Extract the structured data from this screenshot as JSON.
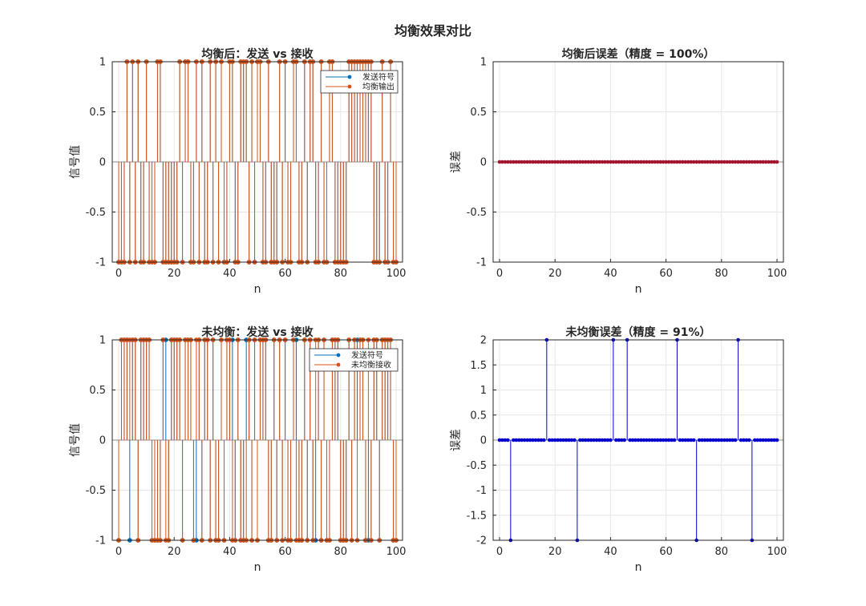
{
  "figure": {
    "title": "均衡效果对比"
  },
  "colors": {
    "sent": "#0072BD",
    "output": "#D95319",
    "error_post": "#A2142F",
    "error_pre": "#0000CC",
    "grid": "#E6E6E6",
    "axis": "#262626"
  },
  "chart_data": [
    {
      "type": "stem",
      "title": "均衡后：发送 vs 接收",
      "xlabel": "n",
      "ylabel": "信号值",
      "xlim": [
        0,
        100
      ],
      "ylim": [
        -1,
        1
      ],
      "xticks": [
        "0",
        "20",
        "40",
        "60",
        "80",
        "100"
      ],
      "yticks": [
        "-1",
        "-0.5",
        "0",
        "0.5",
        "1"
      ],
      "grid": true,
      "legend": {
        "placement": "top-right",
        "entries": [
          "发送符号",
          "均衡输出"
        ]
      },
      "x_start": 0,
      "series": [
        {
          "name": "发送符号",
          "values": [
            -1,
            -1,
            -1,
            1,
            -1,
            1,
            -1,
            1,
            -1,
            -1,
            1,
            -1,
            -1,
            -1,
            1,
            1,
            -1,
            -1,
            -1,
            -1,
            -1,
            -1,
            1,
            -1,
            1,
            1,
            -1,
            -1,
            1,
            -1,
            1,
            -1,
            -1,
            1,
            -1,
            1,
            -1,
            1,
            -1,
            -1,
            1,
            1,
            -1,
            -1,
            1,
            1,
            1,
            -1,
            1,
            -1,
            1,
            1,
            -1,
            -1,
            1,
            -1,
            -1,
            -1,
            1,
            -1,
            1,
            -1,
            -1,
            1,
            1,
            -1,
            -1,
            1,
            -1,
            1,
            1,
            -1,
            -1,
            1,
            -1,
            -1,
            1,
            1,
            -1,
            -1,
            -1,
            -1,
            -1,
            1,
            1,
            1,
            1,
            1,
            1,
            1,
            1,
            1,
            -1,
            -1,
            -1,
            1,
            -1,
            -1,
            1,
            -1,
            -1
          ]
        },
        {
          "name": "均衡输出",
          "values": [
            -1,
            -1,
            -1,
            1,
            -1,
            1,
            -1,
            1,
            -1,
            -1,
            1,
            -1,
            -1,
            -1,
            1,
            1,
            -1,
            -1,
            -1,
            -1,
            -1,
            -1,
            1,
            -1,
            1,
            1,
            -1,
            -1,
            1,
            -1,
            1,
            -1,
            -1,
            1,
            -1,
            1,
            -1,
            1,
            -1,
            -1,
            1,
            1,
            -1,
            -1,
            1,
            1,
            1,
            -1,
            1,
            -1,
            1,
            1,
            -1,
            -1,
            1,
            -1,
            -1,
            -1,
            1,
            -1,
            1,
            -1,
            -1,
            1,
            1,
            -1,
            -1,
            1,
            -1,
            1,
            1,
            -1,
            -1,
            1,
            -1,
            -1,
            1,
            1,
            -1,
            -1,
            -1,
            -1,
            -1,
            1,
            1,
            1,
            1,
            1,
            1,
            1,
            1,
            1,
            -1,
            -1,
            -1,
            1,
            -1,
            -1,
            1,
            -1,
            -1
          ]
        }
      ]
    },
    {
      "type": "stem",
      "title": "均衡后误差（精度 = 100%）",
      "xlabel": "n",
      "ylabel": "误差",
      "xlim": [
        0,
        100
      ],
      "ylim": [
        -1,
        1
      ],
      "xticks": [
        "0",
        "20",
        "40",
        "60",
        "80",
        "100"
      ],
      "yticks": [
        "-1",
        "-0.5",
        "0",
        "0.5",
        "1"
      ],
      "grid": true,
      "x_start": 0,
      "series": [
        {
          "values": [
            0,
            0,
            0,
            0,
            0,
            0,
            0,
            0,
            0,
            0,
            0,
            0,
            0,
            0,
            0,
            0,
            0,
            0,
            0,
            0,
            0,
            0,
            0,
            0,
            0,
            0,
            0,
            0,
            0,
            0,
            0,
            0,
            0,
            0,
            0,
            0,
            0,
            0,
            0,
            0,
            0,
            0,
            0,
            0,
            0,
            0,
            0,
            0,
            0,
            0,
            0,
            0,
            0,
            0,
            0,
            0,
            0,
            0,
            0,
            0,
            0,
            0,
            0,
            0,
            0,
            0,
            0,
            0,
            0,
            0,
            0,
            0,
            0,
            0,
            0,
            0,
            0,
            0,
            0,
            0,
            0,
            0,
            0,
            0,
            0,
            0,
            0,
            0,
            0,
            0,
            0,
            0,
            0,
            0,
            0,
            0,
            0,
            0,
            0,
            0,
            0
          ]
        }
      ]
    },
    {
      "type": "stem",
      "title": "未均衡：发送 vs 接收",
      "xlabel": "n",
      "ylabel": "信号值",
      "xlim": [
        0,
        100
      ],
      "ylim": [
        -1,
        1
      ],
      "xticks": [
        "0",
        "20",
        "40",
        "60",
        "80",
        "100"
      ],
      "yticks": [
        "-1",
        "-0.5",
        "0",
        "0.5",
        "1"
      ],
      "grid": true,
      "legend": {
        "placement": "top-right",
        "entries": [
          "发送符号",
          "未均衡接收"
        ]
      },
      "x_start": 0,
      "series": [
        {
          "name": "发送符号",
          "values": [
            -1,
            1,
            1,
            1,
            -1,
            1,
            1,
            -1,
            1,
            1,
            1,
            1,
            -1,
            -1,
            -1,
            -1,
            1,
            1,
            -1,
            1,
            1,
            1,
            1,
            -1,
            1,
            1,
            1,
            -1,
            -1,
            1,
            -1,
            1,
            1,
            -1,
            1,
            -1,
            -1,
            1,
            -1,
            1,
            1,
            1,
            -1,
            1,
            -1,
            -1,
            1,
            1,
            -1,
            1,
            -1,
            1,
            1,
            1,
            -1,
            -1,
            1,
            -1,
            1,
            -1,
            1,
            -1,
            -1,
            1,
            1,
            -1,
            -1,
            1,
            -1,
            1,
            -1,
            -1,
            1,
            -1,
            1,
            -1,
            -1,
            1,
            1,
            1,
            -1,
            -1,
            -1,
            1,
            -1,
            1,
            1,
            1,
            1,
            -1,
            -1,
            -1,
            1,
            1,
            -1,
            1,
            1,
            1,
            1,
            -1,
            -1
          ]
        },
        {
          "name": "未均衡接收",
          "values": [
            -1,
            1,
            1,
            1,
            1,
            1,
            1,
            -1,
            1,
            1,
            1,
            1,
            -1,
            -1,
            -1,
            -1,
            1,
            -1,
            -1,
            1,
            1,
            1,
            1,
            -1,
            1,
            1,
            1,
            -1,
            1,
            1,
            -1,
            1,
            1,
            -1,
            1,
            -1,
            -1,
            1,
            -1,
            1,
            1,
            -1,
            -1,
            1,
            -1,
            -1,
            -1,
            1,
            -1,
            1,
            -1,
            1,
            1,
            1,
            -1,
            -1,
            1,
            -1,
            1,
            -1,
            1,
            -1,
            -1,
            1,
            -1,
            -1,
            -1,
            1,
            -1,
            1,
            -1,
            1,
            1,
            -1,
            1,
            -1,
            -1,
            1,
            1,
            1,
            -1,
            -1,
            -1,
            1,
            -1,
            1,
            -1,
            1,
            1,
            -1,
            1,
            -1,
            1,
            1,
            -1,
            1,
            1,
            1,
            1,
            -1,
            -1
          ]
        }
      ]
    },
    {
      "type": "stem",
      "title": "未均衡误差（精度 = 91%）",
      "xlabel": "n",
      "ylabel": "误差",
      "xlim": [
        0,
        100
      ],
      "ylim": [
        -2,
        2
      ],
      "xticks": [
        "0",
        "20",
        "40",
        "60",
        "80",
        "100"
      ],
      "yticks": [
        "-2",
        "-1.5",
        "-1",
        "-0.5",
        "0",
        "0.5",
        "1",
        "1.5",
        "2"
      ],
      "grid": true,
      "x_start": 0,
      "series": [
        {
          "values": [
            0,
            0,
            0,
            0,
            -2,
            0,
            0,
            0,
            0,
            0,
            0,
            0,
            0,
            0,
            0,
            0,
            0,
            2,
            0,
            0,
            0,
            0,
            0,
            0,
            0,
            0,
            0,
            0,
            -2,
            0,
            0,
            0,
            0,
            0,
            0,
            0,
            0,
            0,
            0,
            0,
            0,
            2,
            0,
            0,
            0,
            0,
            2,
            0,
            0,
            0,
            0,
            0,
            0,
            0,
            0,
            0,
            0,
            0,
            0,
            0,
            0,
            0,
            0,
            0,
            2,
            0,
            0,
            0,
            0,
            0,
            0,
            -2,
            0,
            0,
            0,
            0,
            0,
            0,
            0,
            0,
            0,
            0,
            0,
            0,
            0,
            0,
            2,
            0,
            0,
            0,
            0,
            -2,
            0,
            0,
            0,
            0,
            0,
            0,
            0,
            0,
            0
          ]
        }
      ]
    }
  ]
}
